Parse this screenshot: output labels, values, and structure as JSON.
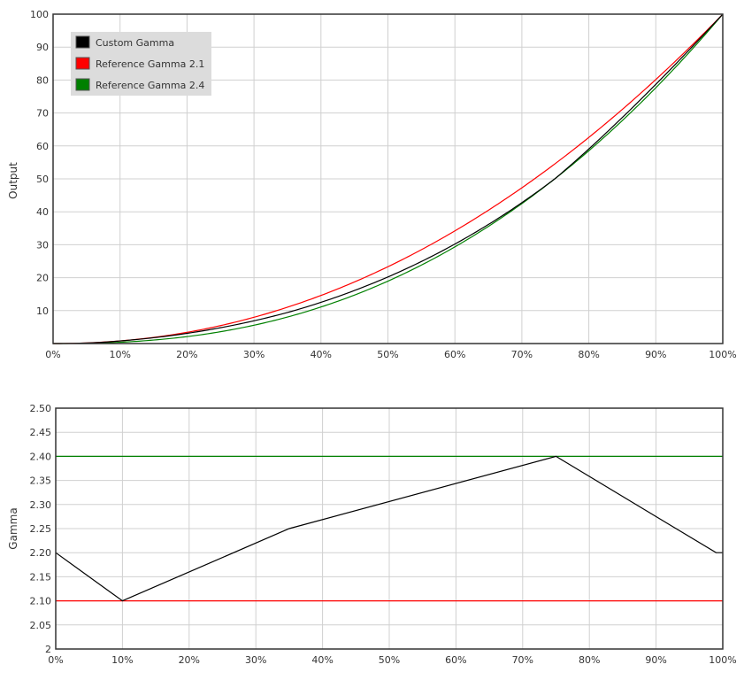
{
  "chart_data": [
    {
      "type": "line",
      "ylabel": "Output",
      "xlim": [
        0,
        100
      ],
      "ylim": [
        0,
        100
      ],
      "x_ticks": [
        "0%",
        "10%",
        "20%",
        "30%",
        "40%",
        "50%",
        "60%",
        "70%",
        "80%",
        "90%",
        "100%"
      ],
      "y_ticks": [
        "10",
        "20",
        "30",
        "40",
        "50",
        "60",
        "70",
        "80",
        "90",
        "100"
      ],
      "grid": true,
      "legend_position": "top-left",
      "series": [
        {
          "name": "Custom Gamma",
          "color": "#000000",
          "style": "custom-curve"
        },
        {
          "name": "Reference Gamma 2.1",
          "color": "#ff0000",
          "gamma": 2.1
        },
        {
          "name": "Reference Gamma 2.4",
          "color": "#008000",
          "gamma": 2.4
        }
      ]
    },
    {
      "type": "line",
      "ylabel": "Gamma",
      "xlim": [
        0,
        100
      ],
      "ylim": [
        2.0,
        2.5
      ],
      "x_ticks": [
        "0%",
        "10%",
        "20%",
        "30%",
        "40%",
        "50%",
        "60%",
        "70%",
        "80%",
        "90%",
        "100%"
      ],
      "y_ticks": [
        "2",
        "2.05",
        "2.10",
        "2.15",
        "2.20",
        "2.25",
        "2.30",
        "2.35",
        "2.40",
        "2.45",
        "2.50"
      ],
      "grid": true,
      "series": [
        {
          "name": "Custom Gamma",
          "color": "#000000",
          "x": [
            0,
            10,
            35,
            75,
            99,
            100
          ],
          "y": [
            2.2,
            2.1,
            2.25,
            2.4,
            2.2,
            2.2
          ]
        },
        {
          "name": "Reference Gamma 2.1",
          "color": "#ff0000",
          "x": [
            0,
            100
          ],
          "y": [
            2.1,
            2.1
          ]
        },
        {
          "name": "Reference Gamma 2.4",
          "color": "#008000",
          "x": [
            0,
            100
          ],
          "y": [
            2.4,
            2.4
          ]
        }
      ]
    }
  ]
}
